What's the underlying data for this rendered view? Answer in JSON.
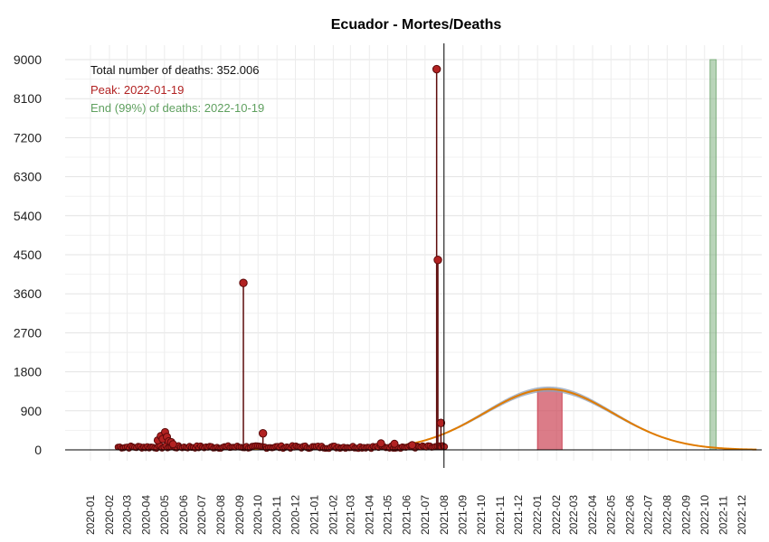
{
  "chart_data": {
    "type": "line",
    "title": "Ecuador - Mortes/Deaths",
    "xlabel": "",
    "ylabel": "",
    "ylim": [
      0,
      9000
    ],
    "yticks": [
      0,
      900,
      1800,
      2700,
      3600,
      4500,
      5400,
      6300,
      7200,
      8100,
      9000
    ],
    "xticks": [
      "2020-01",
      "2020-02",
      "2020-03",
      "2020-04",
      "2020-05",
      "2020-06",
      "2020-07",
      "2020-08",
      "2020-09",
      "2020-10",
      "2020-11",
      "2020-12",
      "2021-01",
      "2021-02",
      "2021-03",
      "2021-04",
      "2021-05",
      "2021-06",
      "2021-07",
      "2021-08",
      "2021-09",
      "2021-10",
      "2021-11",
      "2021-12",
      "2022-01",
      "2022-02",
      "2022-03",
      "2022-04",
      "2022-05",
      "2022-06",
      "2022-07",
      "2022-08",
      "2022-09",
      "2022-10",
      "2022-11",
      "2022-12"
    ],
    "grid": true,
    "annotations": {
      "total": "Total number of deaths: 352.006",
      "peak": "Peak: 2022-01-19",
      "end": "End (99%) of deaths: 2022-10-19"
    },
    "colors": {
      "daily": "#b22222",
      "daily_dark": "#5c0a0a",
      "fit": "#e07b00",
      "fit_band": "#8f9fb5",
      "peak_band": "#cc4455",
      "end_band": "#7fb07f",
      "peak_text": "#b22222",
      "end_text": "#5fa05f",
      "today_line": "#000000"
    },
    "today": "2021-08-01",
    "peak_band": [
      "2022-01-01",
      "2022-02-10"
    ],
    "end_band": [
      "2022-10-10",
      "2022-10-20"
    ],
    "observed_range": [
      "2020-02-15",
      "2021-08-03"
    ],
    "fit_peak": {
      "date": "2022-01-19",
      "value": 1400,
      "sigma_days": 105
    },
    "spikes": [
      {
        "date": "2020-09-07",
        "value": 3850
      },
      {
        "date": "2020-10-09",
        "value": 380
      },
      {
        "date": "2021-07-20",
        "value": 8780
      },
      {
        "date": "2021-07-22",
        "value": 4380
      },
      {
        "date": "2021-07-27",
        "value": 620
      }
    ],
    "wave_points": [
      {
        "date": "2020-04-20",
        "value": 220
      },
      {
        "date": "2020-04-25",
        "value": 320
      },
      {
        "date": "2020-04-28",
        "value": 250
      },
      {
        "date": "2020-05-02",
        "value": 410
      },
      {
        "date": "2020-05-05",
        "value": 300
      },
      {
        "date": "2020-05-08",
        "value": 200
      },
      {
        "date": "2020-05-12",
        "value": 180
      },
      {
        "date": "2020-05-15",
        "value": 130
      },
      {
        "date": "2021-04-20",
        "value": 150
      },
      {
        "date": "2021-05-12",
        "value": 140
      },
      {
        "date": "2021-06-10",
        "value": 110
      }
    ]
  }
}
